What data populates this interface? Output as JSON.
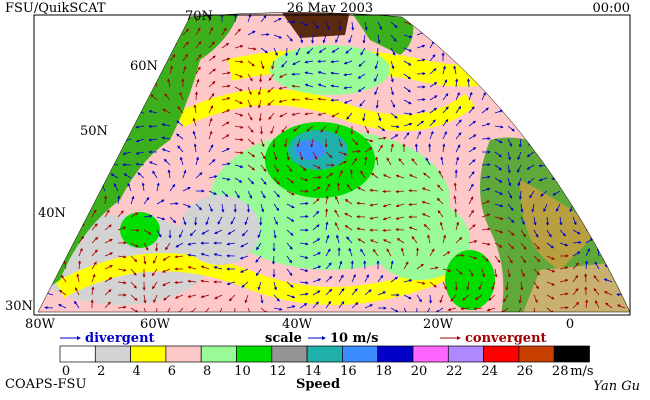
{
  "header": {
    "title": "FSU/QuikSCAT",
    "date": "26 May 2003",
    "time": "00:00"
  },
  "map": {
    "lat_labels": [
      "70N",
      "60N",
      "50N",
      "40N",
      "30N"
    ],
    "lon_labels": [
      "80W",
      "60W",
      "40W",
      "20W",
      "0"
    ]
  },
  "legend": {
    "divergent": "divergent",
    "scale": "scale",
    "scale_value": "10 m/s",
    "convergent": "convergent"
  },
  "colorbar": {
    "ticks": [
      0,
      2,
      4,
      6,
      8,
      10,
      12,
      14,
      16,
      18,
      20,
      22,
      24,
      26,
      28
    ],
    "unit": "m/s",
    "label": "Speed",
    "colors": [
      "#ffffff",
      "#d3d3d3",
      "#ffff00",
      "#ffc8c8",
      "#98fb98",
      "#00dd00",
      "#959595",
      "#20b2aa",
      "#3d8cff",
      "#0000c8",
      "#ff66ff",
      "#b088ff",
      "#ff0000",
      "#c84000",
      "#000000"
    ]
  },
  "footer": {
    "credit": "COAPS-FSU",
    "author": "Yan Gu"
  }
}
